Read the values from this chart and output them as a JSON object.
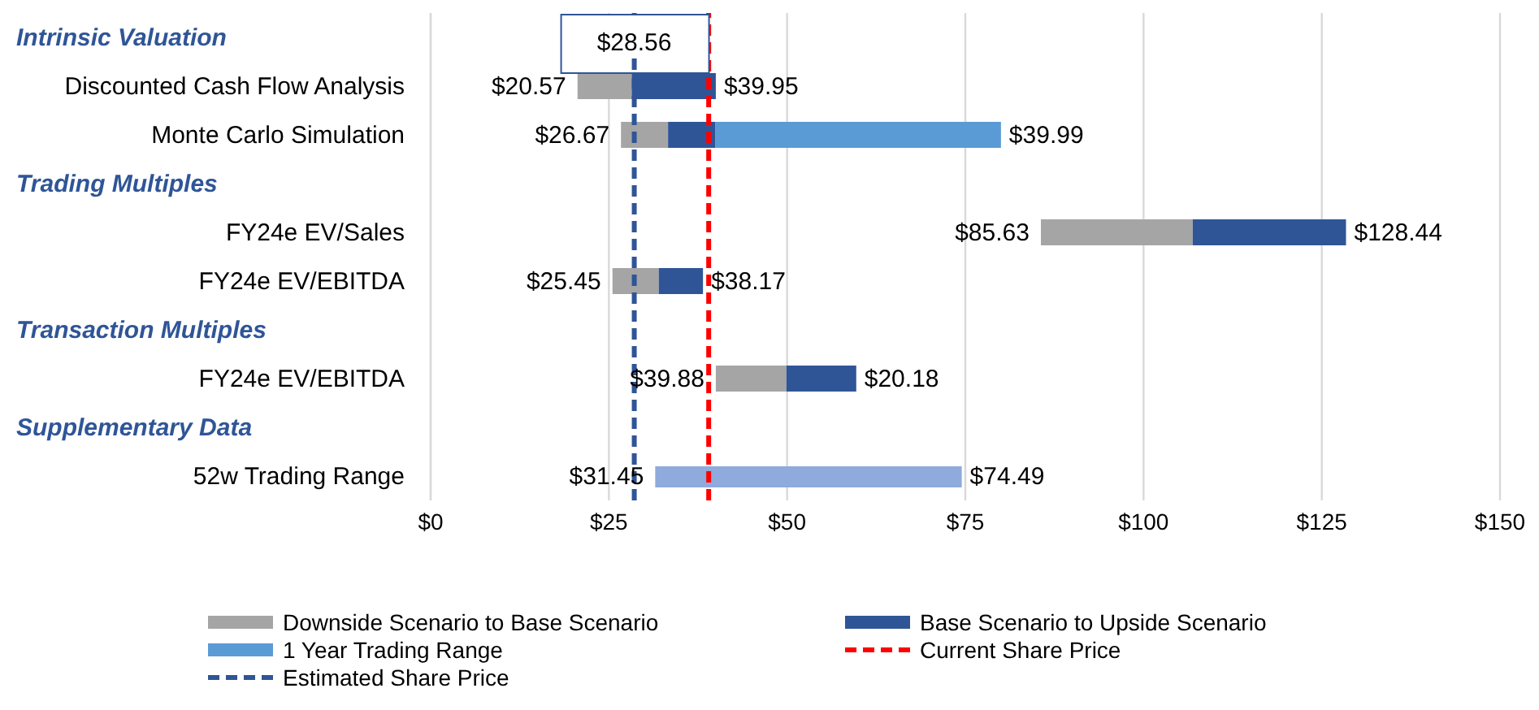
{
  "chart_data": {
    "type": "bar",
    "orientation": "horizontal",
    "categories": [
      null,
      "Discounted Cash Flow Analysis",
      "Monte Carlo Simulation",
      null,
      "FY24e EV/Sales",
      "FY24e EV/EBITDA",
      null,
      "FY24e EV/EBITDA",
      null,
      "52w Trading Range"
    ],
    "series": [
      {
        "name": "Downside Scenario to Base Scenario",
        "color": "#a5a5a5",
        "base": [
          null,
          20.6,
          26.7,
          null,
          85.6,
          25.5,
          null,
          40,
          null,
          null
        ],
        "values": [
          null,
          7.6,
          6.6,
          null,
          21.3,
          6.5,
          null,
          9.9,
          null,
          null
        ]
      },
      {
        "name": "Base Scenario to Upside Scenario",
        "color": "#2f5597",
        "base": [
          null,
          28.2,
          33.3,
          null,
          106.9,
          32,
          null,
          49.9,
          null,
          null
        ],
        "values": [
          null,
          11.8,
          6.6,
          null,
          21.5,
          6.2,
          null,
          9.8,
          null,
          null
        ]
      },
      {
        "name": "1 Year Trading Range",
        "color": "#5b9bd5",
        "base": [
          null,
          null,
          39.9,
          null,
          null,
          null,
          null,
          null,
          null,
          null
        ],
        "values": [
          null,
          null,
          40.1,
          null,
          null,
          null,
          null,
          null,
          null,
          null
        ]
      },
      {
        "color": "#8faadc",
        "base": [
          null,
          null,
          null,
          null,
          null,
          null,
          null,
          null,
          null,
          31.5
        ],
        "values": [
          null,
          null,
          null,
          null,
          null,
          null,
          null,
          null,
          null,
          43
        ]
      }
    ],
    "xlim": [
      0,
      150
    ],
    "xticks": [
      {
        "value": 0,
        "label": "$0"
      },
      {
        "value": 25,
        "label": "$25"
      },
      {
        "value": 50,
        "label": "$50"
      },
      {
        "value": 75,
        "label": "$75"
      },
      {
        "value": 100,
        "label": "$100"
      },
      {
        "value": 125,
        "label": "$125"
      },
      {
        "value": 150,
        "label": "$150"
      }
    ],
    "ref_lines": [
      {
        "axis": "x",
        "value": 39,
        "label": "Current Share Price",
        "color": "#ff0000",
        "line_style": "dashed"
      },
      {
        "axis": "x",
        "value": 28.56,
        "label": "Estimated Share Price",
        "color": "#2f5597",
        "line_style": "dashed"
      }
    ],
    "annotations": [
      "Intrinsic Valuation",
      "Trading Multiples",
      "Transaction Multiples",
      "Supplementary Data",
      {
        "text": "$28.56",
        "x": 28.56
      },
      {
        "text": "$20.57",
        "x": 20.6,
        "y": "Discounted Cash Flow Analysis"
      },
      {
        "text": "$39.95",
        "x": 40,
        "y": "Discounted Cash Flow Analysis"
      },
      {
        "text": "$26.67",
        "x": 26.7,
        "y": "Monte Carlo Simulation"
      },
      {
        "text": "$39.99",
        "x": 80,
        "y": "Monte Carlo Simulation"
      },
      {
        "text": "$85.63",
        "x": 85.6,
        "y": "FY24e EV/Sales"
      },
      {
        "text": "$128.44",
        "x": 128.4,
        "y": "FY24e EV/Sales"
      },
      {
        "text": "$25.45",
        "x": 25.5,
        "y": "FY24e EV/EBITDA"
      },
      {
        "text": "$38.17",
        "x": 38.2,
        "y": "FY24e EV/EBITDA"
      },
      "$39.88",
      "$20.18",
      {
        "text": "$31.45",
        "x": 31.5,
        "y": "52w Trading Range"
      },
      {
        "text": "$74.49",
        "x": 74.5,
        "y": "52w Trading Range"
      }
    ],
    "grid": "x",
    "legend": "bottom"
  }
}
